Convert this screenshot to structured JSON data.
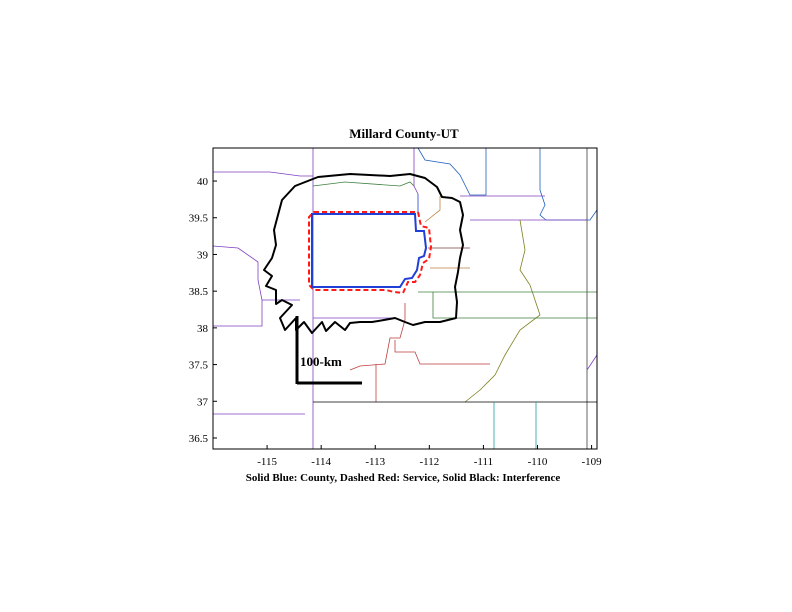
{
  "map": {
    "title": "Millard County-UT",
    "caption": "Solid Blue: County, Dashed Red: Service, Solid Black: Interference",
    "scale_bar_label": "100-km",
    "x_axis": {
      "range": [
        -116,
        -108.9
      ],
      "ticks": [
        -115,
        -114,
        -113,
        -112,
        -111,
        -110,
        -109
      ]
    },
    "y_axis": {
      "range": [
        36.35,
        40.45
      ],
      "ticks": [
        40,
        39.5,
        39,
        38.5,
        38,
        37.5,
        37,
        36.5
      ]
    },
    "colors": {
      "county": "#1f3fd6",
      "service": "#ff1a1a",
      "interference": "#000000"
    }
  }
}
